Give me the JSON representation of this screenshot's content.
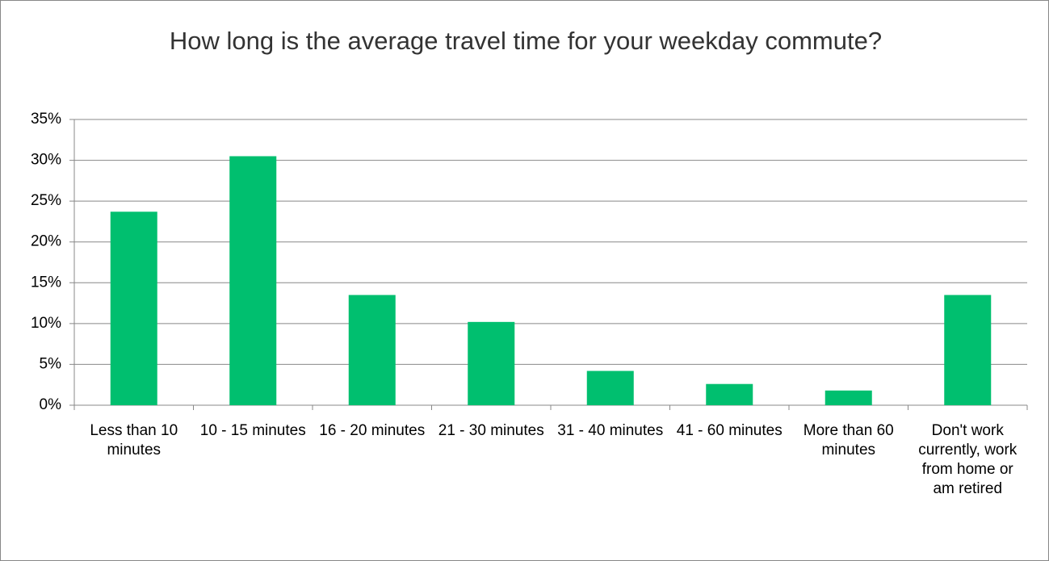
{
  "chart_data": {
    "type": "bar",
    "title": "How long is the average travel time for your weekday commute?",
    "categories": [
      "Less than 10 minutes",
      "10 - 15 minutes",
      "16 - 20 minutes",
      "21 - 30 minutes",
      "31 - 40 minutes",
      "41 - 60 minutes",
      "More than 60 minutes",
      "Don't work currently, work from home or am retired"
    ],
    "values": [
      23.7,
      30.5,
      13.5,
      10.2,
      4.2,
      2.6,
      1.8,
      13.5
    ],
    "color": "#00bf6f",
    "ylim": [
      0,
      35
    ],
    "yticks": [
      {
        "value": 0,
        "label": "0%"
      },
      {
        "value": 5,
        "label": "5%"
      },
      {
        "value": 10,
        "label": "10%"
      },
      {
        "value": 15,
        "label": "15%"
      },
      {
        "value": 20,
        "label": "20%"
      },
      {
        "value": 25,
        "label": "25%"
      },
      {
        "value": 30,
        "label": "30%"
      },
      {
        "value": 35,
        "label": "35%"
      }
    ],
    "grid": true
  }
}
